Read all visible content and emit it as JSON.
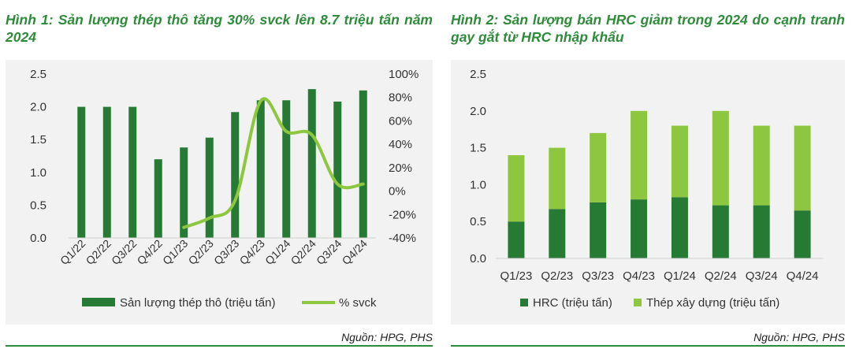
{
  "colors": {
    "title_green": "#2e8b3a",
    "dark_green": "#267a33",
    "light_green": "#8dc63f",
    "panel_bg": "#f2f2f2"
  },
  "figure1": {
    "title": "Hình 1: Sản lượng thép thô tăng 30% svck lên 8.7 triệu tấn năm 2024",
    "source": "Nguồn: HPG, PHS"
  },
  "figure2": {
    "title": "Hình 2: Sản lượng bán HRC giảm trong 2024 do cạnh tranh gay gắt từ HRC nhập khẩu",
    "source": "Nguồn: HPG, PHS"
  },
  "chart_data": [
    {
      "type": "bar",
      "categories": [
        "Q1/22",
        "Q2/22",
        "Q3/22",
        "Q4/22",
        "Q1/23",
        "Q2/23",
        "Q3/23",
        "Q4/23",
        "Q1/24",
        "Q2/24",
        "Q3/24",
        "Q4/24"
      ],
      "series": [
        {
          "name": "Sản lượng thép thô (triệu tấn)",
          "type": "bar",
          "axis": "left",
          "values": [
            2.0,
            2.0,
            2.0,
            1.2,
            1.38,
            1.53,
            1.92,
            2.1,
            2.1,
            2.27,
            2.08,
            2.25
          ]
        },
        {
          "name": "% svck",
          "type": "line",
          "axis": "right",
          "values": [
            null,
            null,
            null,
            null,
            -31,
            -23,
            -8,
            77,
            51,
            48,
            6,
            6
          ]
        }
      ],
      "left_ticks": [
        "0.0",
        "0.5",
        "1.0",
        "1.5",
        "2.0",
        "2.5"
      ],
      "right_ticks": [
        "-40%",
        "-20%",
        "0%",
        "20%",
        "40%",
        "60%",
        "80%",
        "100%"
      ],
      "ylim_left": [
        0,
        2.5
      ],
      "ylim_right": [
        -40,
        100
      ],
      "legend": "bottom",
      "grid": false
    },
    {
      "type": "bar",
      "stacked": true,
      "categories": [
        "Q1/23",
        "Q2/23",
        "Q3/23",
        "Q4/23",
        "Q1/24",
        "Q2/24",
        "Q3/24",
        "Q4/24"
      ],
      "series": [
        {
          "name": "HRC (triệu tấn)",
          "values": [
            0.5,
            0.67,
            0.76,
            0.8,
            0.83,
            0.72,
            0.72,
            0.65
          ]
        },
        {
          "name": "Thép xây dựng (triệu tấn)",
          "values": [
            0.9,
            0.83,
            0.94,
            1.2,
            0.97,
            1.28,
            1.08,
            1.15
          ]
        }
      ],
      "left_ticks": [
        "0.0",
        "0.5",
        "1.0",
        "1.5",
        "2.0",
        "2.5"
      ],
      "ylim": [
        0,
        2.5
      ],
      "legend": "bottom",
      "grid": false
    }
  ]
}
